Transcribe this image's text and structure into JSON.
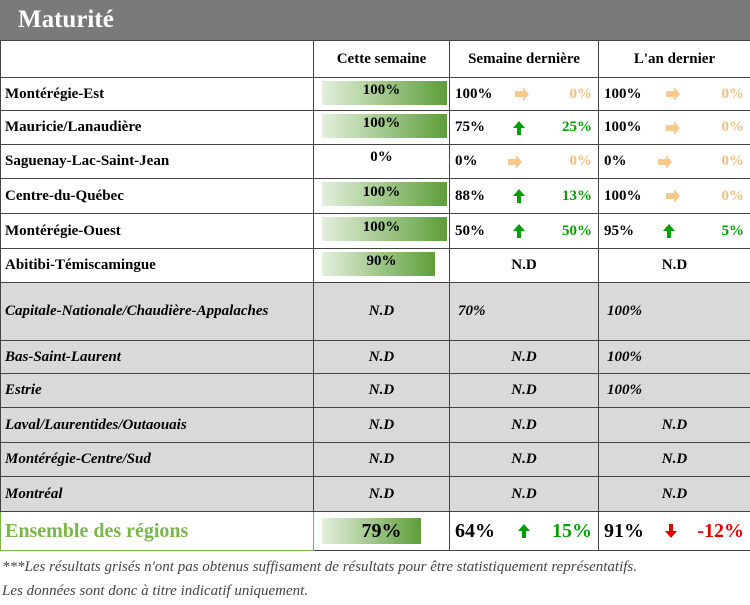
{
  "title": "Maturité",
  "table": {
    "header": [
      "Cette semaine",
      "Semaine dernière",
      "L'an dernier"
    ],
    "rows": [
      {
        "region": "Montérégie-Est",
        "this_week": {
          "value": 100,
          "label": "100%"
        },
        "last_week": {
          "value": "100%",
          "trend": "flat",
          "change": "0%"
        },
        "last_year": {
          "value": "100%",
          "trend": "flat",
          "change": "0%"
        }
      },
      {
        "region": "Mauricie/Lanaudière",
        "this_week": {
          "value": 100,
          "label": "100%"
        },
        "last_week": {
          "value": "75%",
          "trend": "up",
          "change": "25%"
        },
        "last_year": {
          "value": "100%",
          "trend": "flat",
          "change": "0%"
        }
      },
      {
        "region": "Saguenay-Lac-Saint-Jean",
        "this_week": {
          "value": 0,
          "label": "0%"
        },
        "last_week": {
          "value": "0%",
          "trend": "flat",
          "change": "0%"
        },
        "last_year": {
          "value": "0%",
          "trend": "flat",
          "change": "0%"
        }
      },
      {
        "region": "Centre-du-Québec",
        "this_week": {
          "value": 100,
          "label": "100%"
        },
        "last_week": {
          "value": "88%",
          "trend": "up",
          "change": "13%"
        },
        "last_year": {
          "value": "100%",
          "trend": "flat",
          "change": "0%"
        }
      },
      {
        "region": "Montérégie-Ouest",
        "this_week": {
          "value": 100,
          "label": "100%"
        },
        "last_week": {
          "value": "50%",
          "trend": "up",
          "change": "50%"
        },
        "last_year": {
          "value": "95%",
          "trend": "up",
          "change": "5%"
        }
      },
      {
        "region": "Abitibi-Témiscamingue",
        "this_week": {
          "value": 90,
          "label": "90%"
        },
        "last_week": "N.D",
        "last_year": "N.D"
      },
      {
        "region": "Capitale-Nationale/Chaudière-Appalaches",
        "grayed": true,
        "this_week": "N.D",
        "last_week": {
          "value": "70%"
        },
        "last_year": {
          "value": "100%"
        }
      },
      {
        "region": "Bas-Saint-Laurent",
        "grayed": true,
        "this_week": "N.D",
        "last_week": "N.D",
        "last_year": {
          "value": "100%"
        }
      },
      {
        "region": "Estrie",
        "grayed": true,
        "this_week": "N.D",
        "last_week": "N.D",
        "last_year": {
          "value": "100%"
        }
      },
      {
        "region": "Laval/Laurentides/Outaouais",
        "grayed": true,
        "this_week": "N.D",
        "last_week": "N.D",
        "last_year": "N.D"
      },
      {
        "region": "Montérégie-Centre/Sud",
        "grayed": true,
        "this_week": "N.D",
        "last_week": "N.D",
        "last_year": "N.D"
      },
      {
        "region": "Montréal",
        "grayed": true,
        "this_week": "N.D",
        "last_week": "N.D",
        "last_year": "N.D"
      },
      {
        "region": "Ensemble des régions",
        "total": true,
        "this_week": {
          "value": 79,
          "label": "79%"
        },
        "last_week": {
          "value": "64%",
          "trend": "up",
          "change": "15%"
        },
        "last_year": {
          "value": "91%",
          "trend": "down",
          "change": "-12%"
        }
      }
    ]
  },
  "notes": [
    "***Les résultats grisés n'ont pas obtenus suffisament de résultats pour être statistiquement représentatifs.",
    "Les données sont donc à titre indicatif uniquement."
  ]
}
